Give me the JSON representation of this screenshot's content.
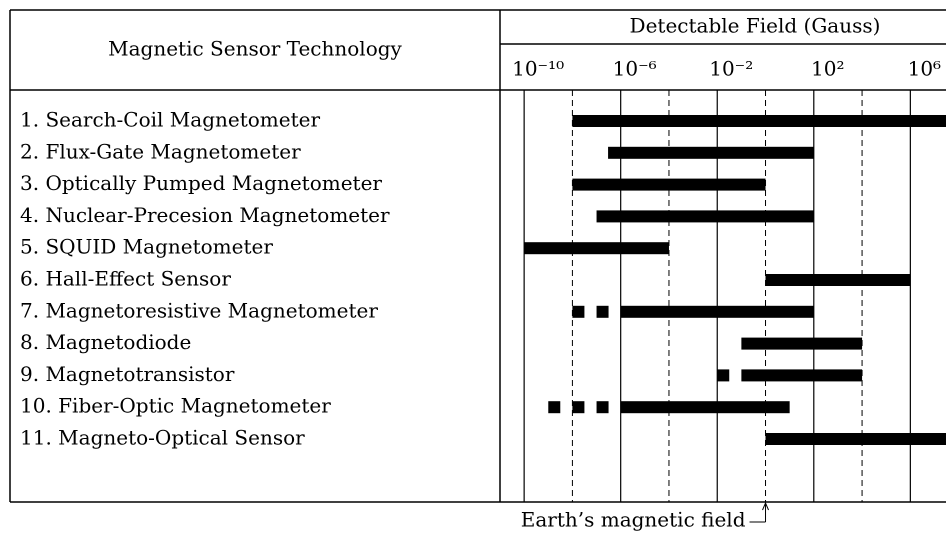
{
  "chart_data": {
    "type": "range_bar",
    "column_header": "Magnetic Sensor Technology",
    "x_label": "Detectable Field (Gauss)",
    "log_x": true,
    "xlim": [
      1e-11,
      30000000.0
    ],
    "xticks": [
      {
        "value": 1e-10,
        "label": "10⁻¹⁰"
      },
      {
        "value": 1e-06,
        "label": "10⁻⁶"
      },
      {
        "value": 0.01,
        "label": "10⁻²"
      },
      {
        "value": 100,
        "label": "10²"
      },
      {
        "value": 1000000,
        "label": "10⁶"
      }
    ],
    "minor_xticks": [
      1e-08,
      0.0001,
      1,
      10000
    ],
    "color": "#000000",
    "categories": [
      "1. Search-Coil Magnetometer",
      "2. Flux-Gate Magnetometer",
      "3. Optically Pumped Magnetometer",
      "4. Nuclear-Precesion Magnetometer",
      "5. SQUID Magnetometer",
      "6. Hall-Effect Sensor",
      "7. Magnetoresistive Magnetometer",
      "8. Magnetodiode",
      "9. Magnetotransistor",
      "10.  Fiber-Optic Magnetometer",
      "11. Magneto-Optical Sensor"
    ],
    "lows": [
      1e-08,
      3e-07,
      1e-08,
      1e-07,
      1e-10,
      1,
      1e-06,
      0.1,
      0.1,
      1e-06,
      1
    ],
    "highs": [
      100000000.0,
      100,
      1,
      100,
      0.0001,
      1000000,
      100,
      10000,
      10000,
      10,
      100000000.0
    ],
    "dashed_lows": [
      null,
      null,
      null,
      null,
      null,
      null,
      1e-08,
      null,
      0.01,
      1e-09,
      null
    ],
    "annotation": {
      "text": "Earth’s magnetic field",
      "x": 1
    }
  }
}
